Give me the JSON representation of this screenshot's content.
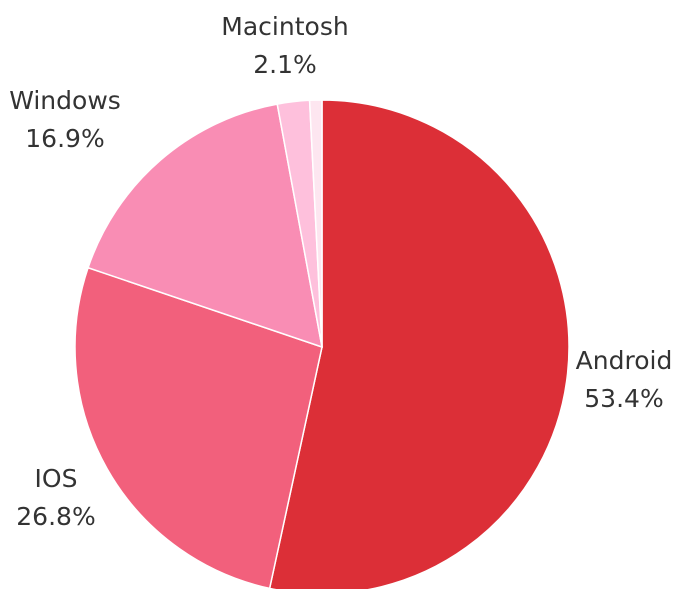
{
  "chart_data": {
    "type": "pie",
    "start_angle_deg": 0,
    "direction": "clockwise",
    "slices": [
      {
        "label": "Android",
        "value": 53.4,
        "value_label": "53.4%",
        "color": "#dc2f37"
      },
      {
        "label": "IOS",
        "value": 26.8,
        "value_label": "26.8%",
        "color": "#f2607c"
      },
      {
        "label": "Windows",
        "value": 16.9,
        "value_label": "16.9%",
        "color": "#f98db4"
      },
      {
        "label": "Macintosh",
        "value": 2.1,
        "value_label": "2.1%",
        "color": "#fec0dc"
      },
      {
        "label": "",
        "value": 0.8,
        "value_label": "",
        "color": "#fde6f0"
      }
    ],
    "legend": "none"
  }
}
